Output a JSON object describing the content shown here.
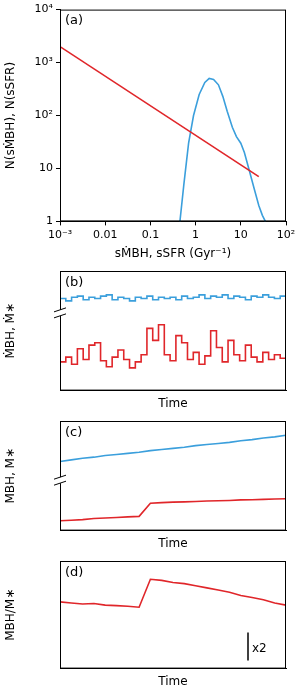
{
  "chart_data": [
    {
      "type": "line",
      "title": "(a)",
      "log": true,
      "grid": false,
      "xlabel": "sṀBH, sSFR (Gyr⁻¹)",
      "ylabel": "N(sṀBH), N(sSFR)",
      "xlim": [
        0.001,
        100
      ],
      "ylim": [
        1,
        10000
      ],
      "xticks": [
        {
          "value": 0.001,
          "label": "10⁻³"
        },
        0.01,
        0.1,
        1,
        10,
        {
          "value": 100,
          "label": "10²"
        }
      ],
      "yticks": [
        1,
        10,
        {
          "value": 100,
          "label": "10²"
        },
        {
          "value": 1000,
          "label": "10³"
        },
        {
          "value": 10000,
          "label": "10⁴"
        }
      ],
      "series": [
        {
          "color": "#e0262a",
          "x": [
            0.001,
            25
          ],
          "values": [
            2000,
            7
          ]
        },
        {
          "color": "#3b9fdc",
          "x": [
            0.45,
            0.55,
            0.7,
            0.9,
            1.2,
            1.6,
            2.0,
            2.5,
            3.2,
            4,
            5,
            6.5,
            8,
            10,
            12,
            15,
            20,
            25,
            30,
            35
          ],
          "values": [
            1,
            5,
            30,
            100,
            250,
            420,
            500,
            480,
            380,
            230,
            120,
            60,
            40,
            30,
            20,
            10,
            4,
            2,
            1.3,
            1
          ]
        }
      ]
    },
    {
      "type": "line",
      "title": "(b)",
      "grid": false,
      "tick_labels": false,
      "xlabel": "Time",
      "ylabel": "ṀBH, Ṁ∗",
      "xlim": [
        0,
        39
      ],
      "ylim": [
        0,
        10
      ],
      "x": [
        0,
        1,
        2,
        3,
        4,
        5,
        6,
        7,
        8,
        9,
        10,
        11,
        12,
        13,
        14,
        15,
        16,
        17,
        18,
        19,
        20,
        21,
        22,
        23,
        24,
        25,
        26,
        27,
        28,
        29,
        30,
        31,
        32,
        33,
        34,
        35,
        36,
        37,
        38,
        39
      ],
      "series": [
        {
          "color": "#3b9fdc",
          "line_style": "step",
          "values": [
            7.7,
            7.7,
            7.5,
            7.8,
            7.9,
            7.6,
            7.8,
            7.7,
            7.9,
            8.0,
            7.6,
            7.8,
            7.7,
            7.5,
            7.8,
            7.7,
            7.9,
            7.6,
            7.8,
            7.7,
            7.8,
            7.6,
            7.9,
            7.7,
            7.8,
            8.0,
            7.7,
            7.9,
            7.8,
            8.0,
            7.7,
            7.9,
            7.8,
            7.6,
            7.9,
            7.8,
            8.0,
            7.8,
            7.7,
            7.9
          ]
        },
        {
          "color": "#e0262a",
          "line_style": "step",
          "values": [
            3.0,
            2.4,
            2.8,
            2.2,
            3.5,
            2.6,
            3.8,
            4.0,
            2.5,
            2.0,
            2.8,
            3.4,
            2.6,
            1.9,
            2.4,
            3.0,
            5.2,
            4.2,
            5.5,
            3.0,
            2.5,
            4.6,
            4.0,
            2.6,
            3.2,
            2.2,
            2.9,
            5.0,
            3.6,
            2.4,
            4.2,
            3.0,
            2.5,
            3.8,
            2.8,
            2.4,
            3.2,
            2.6,
            3.0,
            2.7
          ]
        }
      ]
    },
    {
      "type": "line",
      "title": "(c)",
      "grid": false,
      "tick_labels": false,
      "xlabel": "Time",
      "ylabel": "MBH, M∗",
      "xlim": [
        0,
        20
      ],
      "ylim": [
        0,
        10
      ],
      "x": [
        0,
        1,
        2,
        3,
        4,
        5,
        6,
        7,
        8,
        9,
        10,
        11,
        12,
        13,
        14,
        15,
        16,
        17,
        18,
        19,
        20
      ],
      "series": [
        {
          "color": "#3b9fdc",
          "values": [
            6.3,
            6.45,
            6.6,
            6.7,
            6.85,
            6.95,
            7.05,
            7.15,
            7.3,
            7.4,
            7.5,
            7.6,
            7.75,
            7.85,
            7.95,
            8.05,
            8.2,
            8.3,
            8.45,
            8.55,
            8.7
          ]
        },
        {
          "color": "#e0262a",
          "values": [
            0.9,
            0.95,
            1.0,
            1.1,
            1.15,
            1.2,
            1.25,
            1.3,
            2.5,
            2.55,
            2.6,
            2.62,
            2.65,
            2.7,
            2.72,
            2.75,
            2.8,
            2.82,
            2.85,
            2.88,
            2.9
          ]
        }
      ]
    },
    {
      "type": "line",
      "title": "(d)",
      "grid": false,
      "tick_labels": false,
      "xlabel": "Time",
      "ylabel": "MBH/M∗",
      "annotations": [
        "x2"
      ],
      "xlim": [
        0,
        20
      ],
      "ylim": [
        0,
        10
      ],
      "x": [
        0,
        1,
        2,
        3,
        4,
        5,
        6,
        7,
        8,
        9,
        10,
        11,
        12,
        13,
        14,
        15,
        16,
        17,
        18,
        19,
        20
      ],
      "series": [
        {
          "color": "#e0262a",
          "values": [
            6.2,
            6.1,
            6.0,
            6.05,
            5.9,
            5.85,
            5.8,
            5.7,
            8.3,
            8.2,
            8.0,
            7.9,
            7.7,
            7.5,
            7.3,
            7.1,
            6.8,
            6.6,
            6.4,
            6.1,
            5.9
          ]
        }
      ]
    }
  ]
}
